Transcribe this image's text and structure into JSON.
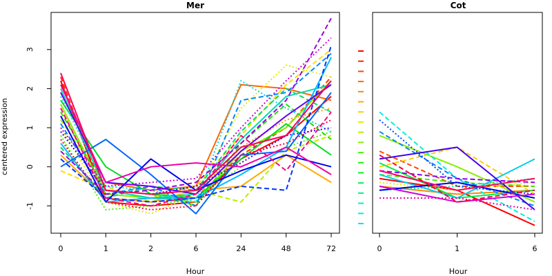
{
  "chart_data": [
    {
      "type": "line",
      "title": "Mer",
      "xlabel": "Hour",
      "ylabel": "centered expression",
      "categories": [
        "0",
        "1",
        "2",
        "6",
        "24",
        "48",
        "72"
      ],
      "yticks": [
        "-1",
        "0",
        "1",
        "2",
        "3"
      ],
      "ylim": [
        -1.7,
        3.95
      ],
      "grid": false,
      "legend": "none",
      "series": [
        {
          "color": "#ff0000",
          "dash": "solid",
          "values": [
            2.2,
            -0.9,
            -1.0,
            -0.9,
            0.2,
            0.8,
            1.8
          ]
        },
        {
          "color": "#ff3300",
          "dash": "dashed",
          "values": [
            2.3,
            -0.8,
            -0.9,
            -0.8,
            0.3,
            1.0,
            2.3
          ]
        },
        {
          "color": "#ff6600",
          "dash": "solid",
          "values": [
            1.9,
            -0.4,
            -0.6,
            -0.5,
            2.1,
            2.0,
            1.7
          ]
        },
        {
          "color": "#ff9900",
          "dash": "dotted",
          "values": [
            1.5,
            -0.7,
            -0.8,
            -0.7,
            0.5,
            1.2,
            1.5
          ]
        },
        {
          "color": "#ffaa00",
          "dash": "solid",
          "values": [
            0.3,
            -0.8,
            -0.9,
            -0.6,
            -0.5,
            0.3,
            -0.4
          ]
        },
        {
          "color": "#ffdd00",
          "dash": "dashed",
          "values": [
            -0.1,
            -0.6,
            -0.8,
            -0.5,
            0.8,
            2.1,
            3.0
          ]
        },
        {
          "color": "#ddee00",
          "dash": "dotted",
          "values": [
            1.0,
            -0.9,
            -1.2,
            -0.7,
            1.5,
            2.6,
            2.3
          ]
        },
        {
          "color": "#bbee00",
          "dash": "dashed",
          "values": [
            1.2,
            -0.5,
            -0.9,
            -0.6,
            -0.9,
            0.4,
            0.8
          ]
        },
        {
          "color": "#88ee00",
          "dash": "solid",
          "values": [
            1.6,
            -0.7,
            -0.8,
            -0.9,
            0.4,
            1.0,
            2.2
          ]
        },
        {
          "color": "#55ee00",
          "dash": "dotted",
          "values": [
            0.8,
            -1.1,
            -1.0,
            -0.8,
            0.0,
            0.5,
            0.9
          ]
        },
        {
          "color": "#22dd00",
          "dash": "dashed",
          "values": [
            1.4,
            -0.6,
            -0.7,
            -1.0,
            0.6,
            1.6,
            0.7
          ]
        },
        {
          "color": "#00dd22",
          "dash": "solid",
          "values": [
            1.7,
            0.0,
            -0.7,
            -0.8,
            0.2,
            1.1,
            0.3
          ]
        },
        {
          "color": "#00dd66",
          "dash": "dashed",
          "values": [
            0.5,
            -0.8,
            -0.5,
            -0.6,
            0.9,
            2.0,
            1.4
          ]
        },
        {
          "color": "#00ddaa",
          "dash": "solid",
          "values": [
            2.0,
            -0.6,
            -0.8,
            -0.7,
            0.7,
            1.8,
            2.1
          ]
        },
        {
          "color": "#00dddd",
          "dash": "dotted",
          "values": [
            1.8,
            -0.5,
            -0.6,
            -0.9,
            2.2,
            1.5,
            0.9
          ]
        },
        {
          "color": "#00bbff",
          "dash": "solid",
          "values": [
            0.6,
            -0.9,
            -0.8,
            -0.8,
            -0.2,
            0.5,
            2.8
          ]
        },
        {
          "color": "#0088ff",
          "dash": "dashed",
          "values": [
            1.1,
            -0.7,
            -0.5,
            -1.0,
            1.7,
            1.9,
            2.9
          ]
        },
        {
          "color": "#0066ff",
          "dash": "solid",
          "values": [
            0.0,
            0.7,
            -0.2,
            -1.2,
            0.3,
            0.4,
            1.9
          ]
        },
        {
          "color": "#0033ff",
          "dash": "dashed",
          "values": [
            0.2,
            -0.8,
            -0.9,
            -0.8,
            -0.5,
            -0.6,
            3.1
          ]
        },
        {
          "color": "#0000ee",
          "dash": "solid",
          "values": [
            1.3,
            -0.9,
            0.2,
            -0.6,
            -0.1,
            0.3,
            0.0
          ]
        },
        {
          "color": "#3300ee",
          "dash": "dotted",
          "values": [
            0.9,
            -0.6,
            -0.7,
            -0.5,
            0.1,
            0.8,
            1.0
          ]
        },
        {
          "color": "#6600ee",
          "dash": "solid",
          "values": [
            1.9,
            -0.4,
            -0.5,
            -0.7,
            0.4,
            1.3,
            2.1
          ]
        },
        {
          "color": "#9900dd",
          "dash": "dashed",
          "values": [
            0.4,
            -0.7,
            -0.6,
            -0.4,
            0.6,
            1.7,
            3.8
          ]
        },
        {
          "color": "#cc00dd",
          "dash": "dotted",
          "values": [
            1.0,
            -0.5,
            -0.4,
            -0.3,
            1.0,
            2.2,
            3.3
          ]
        },
        {
          "color": "#ee00aa",
          "dash": "solid",
          "values": [
            2.1,
            -0.4,
            0.0,
            0.1,
            0.0,
            0.5,
            -0.2
          ]
        },
        {
          "color": "#ff0088",
          "dash": "dashed",
          "values": [
            1.5,
            -0.8,
            -1.0,
            -0.7,
            0.8,
            -0.1,
            1.4
          ]
        },
        {
          "color": "#ff0055",
          "dash": "solid",
          "values": [
            2.4,
            -0.6,
            -0.7,
            -0.6,
            0.5,
            0.8,
            2.2
          ]
        },
        {
          "color": "#ff0033",
          "dash": "dotted",
          "values": [
            0.7,
            -0.9,
            -1.1,
            -1.0,
            0.3,
            0.6,
            1.2
          ]
        }
      ]
    },
    {
      "type": "line",
      "title": "Cot",
      "xlabel": "Hour",
      "ylabel": "",
      "categories": [
        "0",
        "1",
        "6"
      ],
      "yticks": [],
      "ylim": [
        -1.7,
        3.95
      ],
      "grid": false,
      "legend": "none",
      "legend_dashes": [
        "#ff0000",
        "#ff2200",
        "#ff4400",
        "#ff6600",
        "#ff8800",
        "#ffaa00",
        "#ffcc00",
        "#ddee00",
        "#bbee00",
        "#88ee00",
        "#55ee00",
        "#22ee00",
        "#00ee22",
        "#00ee55",
        "#00ee88",
        "#00eebb",
        "#00eedd",
        "#00ddff"
      ],
      "series": [
        {
          "color": "#ff0000",
          "dash": "solid",
          "values": [
            -0.3,
            -0.6,
            -1.5
          ]
        },
        {
          "color": "#ff4400",
          "dash": "dashed",
          "values": [
            0.4,
            -0.5,
            -0.5
          ]
        },
        {
          "color": "#ff8800",
          "dash": "solid",
          "values": [
            -0.5,
            -0.7,
            -0.6
          ]
        },
        {
          "color": "#ffcc00",
          "dash": "dashed",
          "values": [
            0.0,
            0.5,
            -0.7
          ]
        },
        {
          "color": "#ddee00",
          "dash": "dotted",
          "values": [
            -0.4,
            -0.6,
            -0.4
          ]
        },
        {
          "color": "#88ee00",
          "dash": "solid",
          "values": [
            0.8,
            0.0,
            -0.9
          ]
        },
        {
          "color": "#44ee00",
          "dash": "dashed",
          "values": [
            -0.2,
            -0.4,
            -0.5
          ]
        },
        {
          "color": "#00ee44",
          "dash": "solid",
          "values": [
            0.1,
            -0.8,
            -0.6
          ]
        },
        {
          "color": "#00ee99",
          "dash": "dotted",
          "values": [
            -0.6,
            -0.5,
            -0.3
          ]
        },
        {
          "color": "#00eedd",
          "dash": "dashed",
          "values": [
            1.4,
            -0.3,
            -1.4
          ]
        },
        {
          "color": "#00ccee",
          "dash": "solid",
          "values": [
            -0.2,
            -0.8,
            0.2
          ]
        },
        {
          "color": "#0088ff",
          "dash": "dashed",
          "values": [
            0.9,
            -0.3,
            -1.0
          ]
        },
        {
          "color": "#0044ff",
          "dash": "dotted",
          "values": [
            1.2,
            -0.5,
            -0.7
          ]
        },
        {
          "color": "#0000ee",
          "dash": "solid",
          "values": [
            -0.6,
            -0.4,
            -0.8
          ]
        },
        {
          "color": "#4400ee",
          "dash": "solid",
          "values": [
            0.2,
            0.5,
            -1.1
          ]
        },
        {
          "color": "#8800ee",
          "dash": "dashed",
          "values": [
            -0.1,
            -0.3,
            -0.4
          ]
        },
        {
          "color": "#cc00dd",
          "dash": "solid",
          "values": [
            -0.5,
            -0.9,
            -0.7
          ]
        },
        {
          "color": "#ee00aa",
          "dash": "dotted",
          "values": [
            -0.8,
            -0.8,
            -1.1
          ]
        },
        {
          "color": "#ff0066",
          "dash": "solid",
          "values": [
            -0.1,
            -0.6,
            -0.3
          ]
        },
        {
          "color": "#ff0033",
          "dash": "dashed",
          "values": [
            0.3,
            -0.9,
            -0.6
          ]
        }
      ]
    }
  ]
}
